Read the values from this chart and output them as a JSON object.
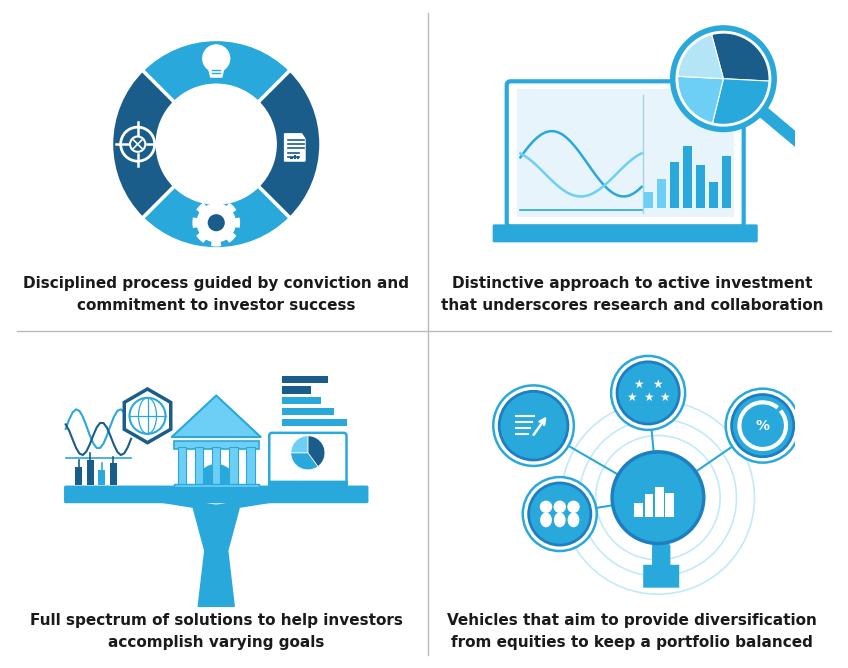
{
  "bg_color": "#ffffff",
  "divider_color": "#bbbbbb",
  "blue_main": "#29a8dc",
  "blue_dark": "#1a5c8a",
  "blue_medium": "#1e7fc0",
  "blue_light": "#6dcff6",
  "blue_pale": "#b3e5f7",
  "text_color": "#1a1a1a",
  "texts": {
    "q1": "Disciplined process guided by conviction and\ncommitment to investor success",
    "q2": "Distinctive approach to active investment\nthat underscores research and collaboration",
    "q3": "Full spectrum of solutions to help investors\naccomplish varying goals",
    "q4": "Vehicles that aim to provide diversification\nfrom equities to keep a portfolio balanced"
  },
  "font_size_label": 11.0
}
